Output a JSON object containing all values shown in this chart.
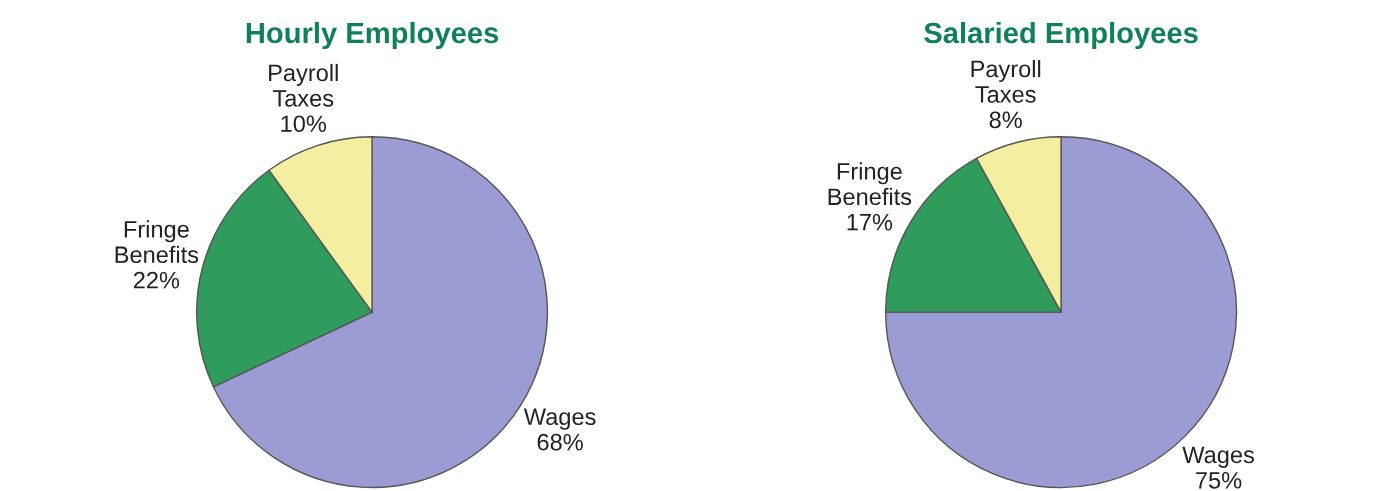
{
  "chart_data": [
    {
      "type": "pie",
      "title": "Hourly Employees",
      "categories": [
        "Wages",
        "Fringe\nBenefits",
        "Payroll\nTaxes"
      ],
      "values": [
        68,
        22,
        10
      ],
      "value_labels": [
        "68%",
        "22%",
        "10%"
      ],
      "colors": [
        "#9c9cd4",
        "#2f9c5c",
        "#f4eea0"
      ]
    },
    {
      "type": "pie",
      "title": "Salaried Employees",
      "categories": [
        "Wages",
        "Fringe\nBenefits",
        "Payroll\nTaxes"
      ],
      "values": [
        75,
        17,
        8
      ],
      "value_labels": [
        "75%",
        "17%",
        "8%"
      ],
      "colors": [
        "#9c9cd4",
        "#2f9c5c",
        "#f4eea0"
      ]
    }
  ]
}
